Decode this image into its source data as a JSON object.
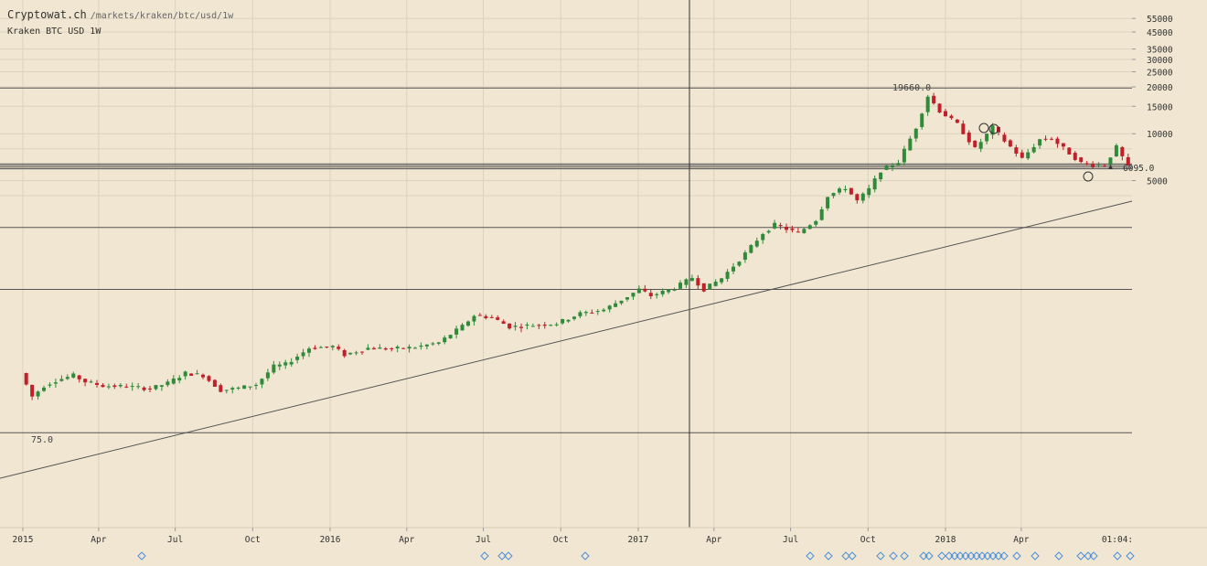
{
  "header": {
    "site": "Cryptowat.ch",
    "path": "/markets/kraken/btc/usd/1w",
    "subtitle": "Kraken BTC USD 1W"
  },
  "annotations": {
    "high_label": "19660.0",
    "low_label": "75.0",
    "price_tag": "6095.0",
    "time_tag": "01:04:"
  },
  "colors": {
    "background": "#f0e6d2",
    "up": "#2f8a3a",
    "down": "#c0202a",
    "grid": "#ddd2bc",
    "line": "#555555"
  },
  "chart_data": {
    "type": "candlestick",
    "title": "Kraken BTC USD 1W",
    "scale": "log",
    "y_ticks": [
      55000,
      45000,
      35000,
      30000,
      25000,
      20000,
      15000,
      10000,
      5000
    ],
    "x_ticks": [
      "2015",
      "Apr",
      "Jul",
      "Oct",
      "2016",
      "Apr",
      "Jul",
      "Oct",
      "2017",
      "Apr",
      "Jul",
      "Oct",
      "2018",
      "Apr"
    ],
    "horizontal_levels": [
      19660,
      6400,
      6250,
      6095,
      5950
    ],
    "annotated_high": 19660,
    "annotated_low": 75,
    "current_price": 6095,
    "weekly_closes": [
      [
        "2014-12-29",
        290
      ],
      [
        "2015-01-12",
        205
      ],
      [
        "2015-01-26",
        240
      ],
      [
        "2015-02-09",
        260
      ],
      [
        "2015-03-02",
        280
      ],
      [
        "2015-03-16",
        255
      ],
      [
        "2015-04-06",
        240
      ],
      [
        "2015-05-04",
        238
      ],
      [
        "2015-06-01",
        230
      ],
      [
        "2015-06-22",
        250
      ],
      [
        "2015-07-13",
        290
      ],
      [
        "2015-08-03",
        280
      ],
      [
        "2015-08-24",
        225
      ],
      [
        "2015-09-14",
        232
      ],
      [
        "2015-10-05",
        245
      ],
      [
        "2015-10-26",
        320
      ],
      [
        "2015-11-09",
        330
      ],
      [
        "2015-12-07",
        420
      ],
      [
        "2016-01-04",
        430
      ],
      [
        "2016-01-18",
        380
      ],
      [
        "2016-02-15",
        420
      ],
      [
        "2016-03-14",
        415
      ],
      [
        "2016-04-11",
        425
      ],
      [
        "2016-05-09",
        455
      ],
      [
        "2016-06-06",
        580
      ],
      [
        "2016-06-20",
        680
      ],
      [
        "2016-07-11",
        660
      ],
      [
        "2016-08-01",
        575
      ],
      [
        "2016-08-22",
        585
      ],
      [
        "2016-09-26",
        605
      ],
      [
        "2016-10-24",
        700
      ],
      [
        "2016-11-21",
        740
      ],
      [
        "2016-12-19",
        900
      ],
      [
        "2017-01-02",
        1000
      ],
      [
        "2017-01-16",
        910
      ],
      [
        "2017-02-13",
        1020
      ],
      [
        "2017-03-06",
        1190
      ],
      [
        "2017-03-20",
        1000
      ],
      [
        "2017-04-10",
        1180
      ],
      [
        "2017-05-08",
        1700
      ],
      [
        "2017-05-29",
        2300
      ],
      [
        "2017-06-12",
        2600
      ],
      [
        "2017-07-10",
        2300
      ],
      [
        "2017-07-31",
        2800
      ],
      [
        "2017-08-14",
        4000
      ],
      [
        "2017-09-04",
        4500
      ],
      [
        "2017-09-18",
        3700
      ],
      [
        "2017-10-02",
        4400
      ],
      [
        "2017-10-16",
        5800
      ],
      [
        "2017-11-06",
        6600
      ],
      [
        "2017-11-27",
        11000
      ],
      [
        "2017-12-11",
        17500
      ],
      [
        "2017-12-25",
        14000
      ],
      [
        "2018-01-15",
        11500
      ],
      [
        "2018-02-05",
        8000
      ],
      [
        "2018-02-26",
        11000
      ],
      [
        "2018-03-12",
        9000
      ],
      [
        "2018-04-02",
        6900
      ],
      [
        "2018-04-23",
        9200
      ],
      [
        "2018-05-07",
        9300
      ],
      [
        "2018-05-28",
        7500
      ],
      [
        "2018-06-11",
        6500
      ],
      [
        "2018-06-25",
        6300
      ],
      [
        "2018-07-09",
        6300
      ],
      [
        "2018-07-23",
        8200
      ],
      [
        "2018-08-06",
        6095
      ]
    ],
    "trendline": {
      "from": [
        "2014-12-01",
        130
      ],
      "to": [
        "2018-08-13",
        4200
      ]
    }
  }
}
